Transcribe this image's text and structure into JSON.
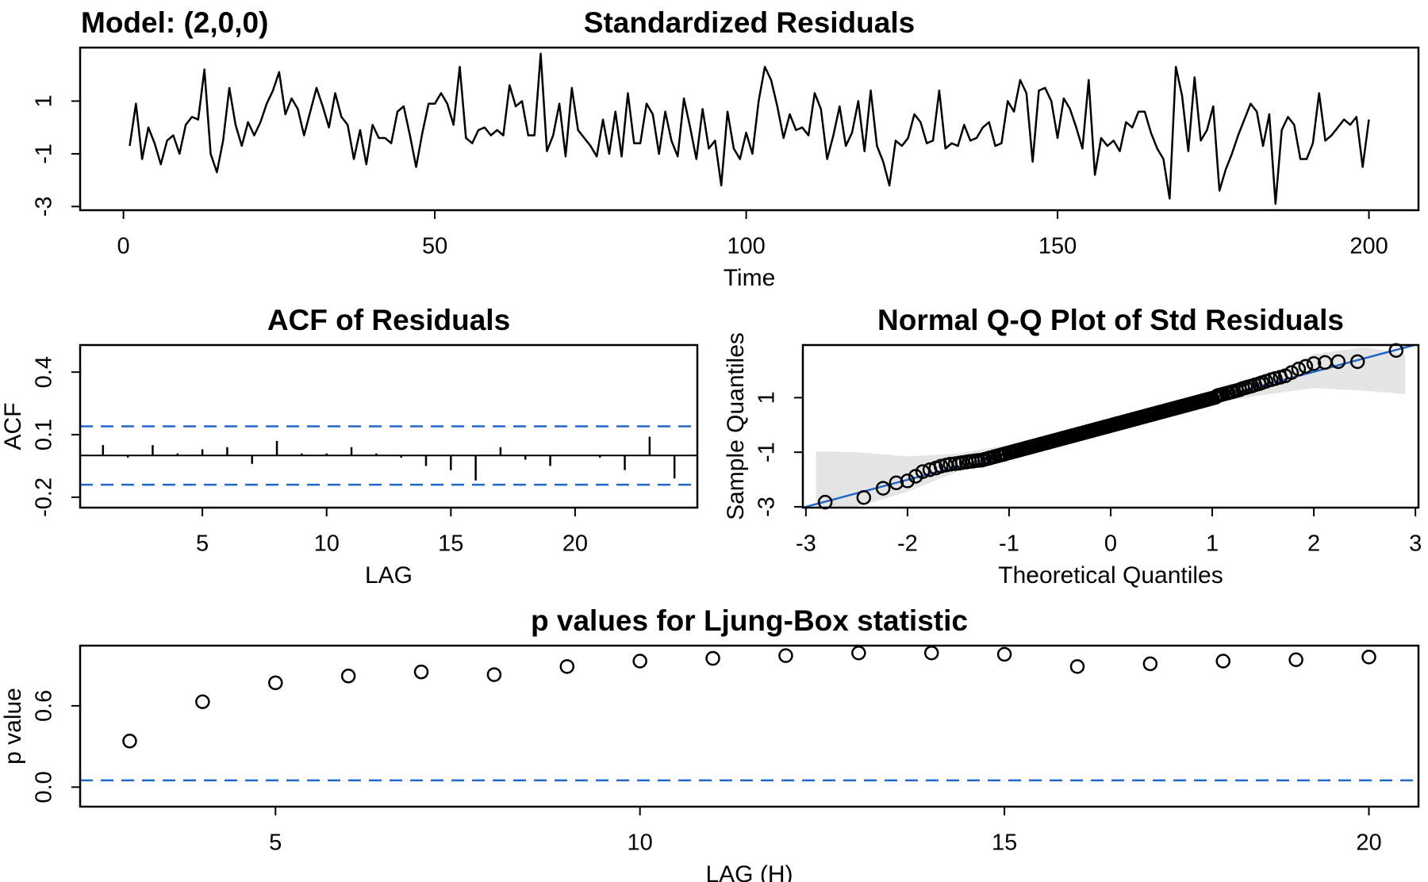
{
  "chart_data": [
    {
      "type": "line",
      "title": "Standardized Residuals",
      "annotation": "Model: (2,0,0)",
      "xlabel": "Time",
      "color": "#000000",
      "xlim": [
        -6.96,
        207.96
      ],
      "ylim": [
        -3.14,
        3.03
      ],
      "xticks": [
        0,
        50,
        100,
        150,
        200
      ],
      "yticks": [
        -3,
        -1,
        1
      ],
      "x": [
        1,
        2,
        3,
        4,
        5,
        6,
        7,
        8,
        9,
        10,
        11,
        12,
        13,
        14,
        15,
        16,
        17,
        18,
        19,
        20,
        21,
        22,
        23,
        24,
        25,
        26,
        27,
        28,
        29,
        30,
        31,
        32,
        33,
        34,
        35,
        36,
        37,
        38,
        39,
        40,
        41,
        42,
        43,
        44,
        45,
        46,
        47,
        48,
        49,
        50,
        51,
        52,
        53,
        54,
        55,
        56,
        57,
        58,
        59,
        60,
        61,
        62,
        63,
        64,
        65,
        66,
        67,
        68,
        69,
        70,
        71,
        72,
        73,
        74,
        75,
        76,
        77,
        78,
        79,
        80,
        81,
        82,
        83,
        84,
        85,
        86,
        87,
        88,
        89,
        90,
        91,
        92,
        93,
        94,
        95,
        96,
        97,
        98,
        99,
        100,
        101,
        102,
        103,
        104,
        105,
        106,
        107,
        108,
        109,
        110,
        111,
        112,
        113,
        114,
        115,
        116,
        117,
        118,
        119,
        120,
        121,
        122,
        123,
        124,
        125,
        126,
        127,
        128,
        129,
        130,
        131,
        132,
        133,
        134,
        135,
        136,
        137,
        138,
        139,
        140,
        141,
        142,
        143,
        144,
        145,
        146,
        147,
        148,
        149,
        150,
        151,
        152,
        153,
        154,
        155,
        156,
        157,
        158,
        159,
        160,
        161,
        162,
        163,
        164,
        165,
        166,
        167,
        168,
        169,
        170,
        171,
        172,
        173,
        174,
        175,
        176,
        177,
        178,
        179,
        180,
        181,
        182,
        183,
        184,
        185,
        186,
        187,
        188,
        189,
        190,
        191,
        192,
        193,
        194,
        195,
        196,
        197,
        198,
        199,
        200
      ],
      "values": [
        -0.7,
        0.9,
        -1.2,
        0,
        -0.6,
        -1.4,
        -0.5,
        -0.3,
        -1.0,
        0.1,
        0.4,
        0.3,
        2.2,
        -1.0,
        -1.7,
        -0.5,
        1.5,
        0.1,
        -0.7,
        0.2,
        -0.3,
        0.2,
        0.9,
        1.4,
        2.1,
        0.5,
        1.1,
        0.7,
        -0.3,
        0.6,
        1.5,
        0.8,
        0,
        1.3,
        0.4,
        0.1,
        -1.2,
        -0.1,
        -1.4,
        0.1,
        -0.4,
        -0.4,
        -0.6,
        0.6,
        0.8,
        -0.3,
        -1.5,
        -0.2,
        0.9,
        0.9,
        1.3,
        0.9,
        0.1,
        2.3,
        -0.4,
        -0.6,
        -0.1,
        0,
        -0.3,
        -0.1,
        -0.3,
        1.6,
        0.8,
        1.0,
        -0.3,
        -0.3,
        2.8,
        -0.9,
        -0.3,
        0.9,
        -1.1,
        1.5,
        -0.1,
        -0.4,
        -0.7,
        -1.1,
        0.3,
        -1.0,
        0.6,
        -1.1,
        1.3,
        -0.6,
        -0.6,
        0.9,
        0.5,
        -1.0,
        0.6,
        -0.5,
        -1.1,
        1.1,
        0,
        -1.2,
        0.7,
        -0.8,
        -0.5,
        -2.2,
        0.6,
        -0.8,
        -1.2,
        -0.2,
        -1.0,
        1.0,
        2.3,
        1.8,
        0.8,
        -0.4,
        0.5,
        -0.1,
        0,
        -0.3,
        1.3,
        0.7,
        -1.2,
        -0.3,
        0.8,
        -0.7,
        -0.2,
        1.0,
        -0.9,
        1.4,
        -0.7,
        -1.3,
        -2.2,
        -0.5,
        -0.7,
        -0.4,
        0.5,
        0.2,
        -0.6,
        -0.5,
        1.4,
        -0.8,
        -0.6,
        -0.7,
        0.1,
        -0.5,
        -0.4,
        0,
        0.2,
        -0.7,
        -0.6,
        1.0,
        0.6,
        1.8,
        1.3,
        -1.3,
        1.4,
        1.5,
        1.0,
        -0.4,
        1.1,
        0.7,
        0,
        -0.8,
        1.8,
        -1.8,
        -0.4,
        -0.7,
        -0.5,
        -0.9,
        0.2,
        0,
        0.6,
        0.6,
        -0.2,
        -0.8,
        -1.2,
        -2.7,
        2.3,
        1.2,
        -0.9,
        1.9,
        -0.5,
        -0.1,
        0.8,
        -2.4,
        -1.6,
        -1.0,
        -0.3,
        0.3,
        0.9,
        0.6,
        -0.7,
        0.5,
        -2.9,
        -0.1,
        0.4,
        0.1,
        -1.2,
        -1.2,
        -0.6,
        1.3,
        -0.5,
        -0.3,
        0,
        0.3,
        0.1,
        0.4,
        -1.5,
        0.3
      ]
    },
    {
      "type": "bar",
      "title": "ACF of Residuals",
      "xlabel": "LAG",
      "ylabel": "ACF",
      "color": "#000000",
      "xlim": [
        0.08,
        24.92
      ],
      "ylim": [
        -0.25,
        0.53
      ],
      "xticks": [
        5,
        10,
        15,
        20
      ],
      "yticks": [
        -0.2,
        0.1,
        0.4
      ],
      "hlines": [
        0.14,
        -0.14
      ],
      "hline_color": "#2166c9",
      "x": [
        1,
        2,
        3,
        4,
        5,
        6,
        7,
        8,
        9,
        10,
        11,
        12,
        13,
        14,
        15,
        16,
        17,
        18,
        19,
        20,
        21,
        22,
        23,
        24
      ],
      "values": [
        0.05,
        -0.01,
        0.05,
        0.01,
        0.03,
        0.04,
        -0.04,
        0.07,
        0.01,
        0.01,
        0.04,
        0.01,
        -0.01,
        -0.05,
        -0.07,
        -0.12,
        0.04,
        -0.02,
        -0.05,
        0,
        -0.01,
        -0.07,
        0.09,
        -0.11
      ]
    },
    {
      "type": "scatter",
      "title": "Normal Q-Q Plot of Std Residuals",
      "xlabel": "Theoretical Quantiles",
      "ylabel": "Sample Quantiles",
      "color": "#000000",
      "xlim": [
        -3.03,
        3.03
      ],
      "ylim": [
        -3.03,
        2.93
      ],
      "xticks": [
        -3,
        -2,
        -1,
        0,
        1,
        2,
        3
      ],
      "yticks": [
        -3,
        -1,
        1
      ],
      "line": {
        "intercept": -0.03,
        "slope": 0.99,
        "color": "#2166c9"
      },
      "envelope": {
        "color": "#e5e5e5",
        "x": [
          -2.9,
          -2.5,
          -2,
          -1.5,
          -1,
          -0.5,
          0,
          0.5,
          1,
          1.5,
          2,
          2.5,
          2.9
        ],
        "upper": [
          -0.97,
          -1.0,
          -1.15,
          -1.05,
          -0.72,
          -0.25,
          0.2,
          0.65,
          1.2,
          1.75,
          2.6,
          2.85,
          2.6
        ],
        "lower": [
          -3.4,
          -3.0,
          -2.45,
          -1.7,
          -1.25,
          -0.75,
          -0.25,
          0.35,
          0.8,
          1.1,
          1.35,
          1.25,
          1.14
        ]
      },
      "x": [
        -2.81,
        -2.43,
        -2.24,
        -2.11,
        -2.0,
        -1.92,
        -1.85,
        -1.78,
        -1.72,
        -1.67,
        -1.62,
        -1.58,
        -1.53,
        -1.49,
        -1.46,
        -1.42,
        -1.39,
        -1.36,
        -1.33,
        -1.3,
        -1.27,
        -1.24,
        -1.21,
        -1.19,
        -1.16,
        -1.14,
        -1.11,
        -1.09,
        -1.07,
        -1.05,
        -1.03,
        -1.0,
        -0.98,
        -0.96,
        -0.94,
        -0.92,
        -0.91,
        -0.89,
        -0.87,
        -0.85,
        -0.83,
        -0.82,
        -0.8,
        -0.78,
        -0.76,
        -0.75,
        -0.73,
        -0.71,
        -0.7,
        -0.68,
        -0.67,
        -0.65,
        -0.64,
        -0.62,
        -0.61,
        -0.59,
        -0.58,
        -0.56,
        -0.55,
        -0.53,
        -0.52,
        -0.5,
        -0.49,
        -0.47,
        -0.46,
        -0.45,
        -0.43,
        -0.42,
        -0.41,
        -0.39,
        -0.38,
        -0.37,
        -0.35,
        -0.34,
        -0.33,
        -0.31,
        -0.3,
        -0.29,
        -0.27,
        -0.26,
        -0.25,
        -0.23,
        -0.22,
        -0.21,
        -0.2,
        -0.18,
        -0.17,
        -0.16,
        -0.14,
        -0.13,
        -0.12,
        -0.11,
        -0.09,
        -0.08,
        -0.07,
        -0.06,
        -0.04,
        -0.03,
        -0.02,
        -0.01,
        0.01,
        0.02,
        0.03,
        0.04,
        0.06,
        0.07,
        0.08,
        0.09,
        0.11,
        0.12,
        0.13,
        0.14,
        0.16,
        0.17,
        0.18,
        0.2,
        0.21,
        0.22,
        0.23,
        0.25,
        0.26,
        0.27,
        0.29,
        0.3,
        0.31,
        0.33,
        0.34,
        0.35,
        0.37,
        0.38,
        0.39,
        0.41,
        0.42,
        0.43,
        0.45,
        0.46,
        0.47,
        0.49,
        0.5,
        0.52,
        0.53,
        0.55,
        0.56,
        0.58,
        0.59,
        0.61,
        0.62,
        0.64,
        0.65,
        0.67,
        0.68,
        0.7,
        0.71,
        0.73,
        0.75,
        0.76,
        0.78,
        0.8,
        0.82,
        0.83,
        0.85,
        0.87,
        0.89,
        0.91,
        0.92,
        0.94,
        0.96,
        0.98,
        1.0,
        1.03,
        1.05,
        1.07,
        1.09,
        1.11,
        1.14,
        1.16,
        1.19,
        1.21,
        1.24,
        1.27,
        1.3,
        1.33,
        1.36,
        1.39,
        1.42,
        1.46,
        1.49,
        1.53,
        1.58,
        1.62,
        1.67,
        1.72,
        1.78,
        1.85,
        1.92,
        2.0,
        2.11,
        2.24,
        2.43,
        2.81
      ],
      "values": [
        -2.83,
        -2.66,
        -2.32,
        -2.12,
        -2.05,
        -1.88,
        -1.71,
        -1.64,
        -1.58,
        -1.51,
        -1.47,
        -1.44,
        -1.42,
        -1.4,
        -1.38,
        -1.36,
        -1.34,
        -1.33,
        -1.31,
        -1.3,
        -1.29,
        -1.26,
        -1.23,
        -1.21,
        -1.18,
        -1.16,
        -1.13,
        -1.11,
        -1.09,
        -1.07,
        -1.05,
        -1.02,
        -1.0,
        -0.98,
        -0.96,
        -0.94,
        -0.93,
        -0.91,
        -0.89,
        -0.87,
        -0.85,
        -0.84,
        -0.82,
        -0.8,
        -0.78,
        -0.77,
        -0.75,
        -0.73,
        -0.72,
        -0.7,
        -0.69,
        -0.67,
        -0.66,
        -0.64,
        -0.63,
        -0.61,
        -0.6,
        -0.58,
        -0.57,
        -0.55,
        -0.54,
        -0.52,
        -0.51,
        -0.49,
        -0.48,
        -0.47,
        -0.45,
        -0.44,
        -0.43,
        -0.41,
        -0.4,
        -0.39,
        -0.37,
        -0.36,
        -0.35,
        -0.33,
        -0.32,
        -0.31,
        -0.29,
        -0.28,
        -0.27,
        -0.25,
        -0.24,
        -0.23,
        -0.22,
        -0.2,
        -0.19,
        -0.18,
        -0.16,
        -0.15,
        -0.14,
        -0.13,
        -0.11,
        -0.1,
        -0.09,
        -0.08,
        -0.06,
        -0.05,
        -0.04,
        -0.03,
        -0.01,
        0,
        0.01,
        0.02,
        0.04,
        0.05,
        0.06,
        0.07,
        0.09,
        0.1,
        0.11,
        0.12,
        0.14,
        0.15,
        0.16,
        0.18,
        0.19,
        0.2,
        0.21,
        0.23,
        0.24,
        0.25,
        0.27,
        0.28,
        0.29,
        0.31,
        0.32,
        0.33,
        0.35,
        0.36,
        0.37,
        0.39,
        0.4,
        0.41,
        0.43,
        0.44,
        0.45,
        0.47,
        0.48,
        0.5,
        0.51,
        0.53,
        0.54,
        0.56,
        0.57,
        0.59,
        0.6,
        0.62,
        0.63,
        0.65,
        0.66,
        0.68,
        0.69,
        0.71,
        0.73,
        0.74,
        0.76,
        0.78,
        0.8,
        0.81,
        0.83,
        0.85,
        0.87,
        0.89,
        0.9,
        0.92,
        0.94,
        0.96,
        0.98,
        1.01,
        1.07,
        1.09,
        1.11,
        1.13,
        1.16,
        1.18,
        1.21,
        1.23,
        1.26,
        1.29,
        1.34,
        1.37,
        1.4,
        1.43,
        1.47,
        1.51,
        1.55,
        1.6,
        1.66,
        1.7,
        1.75,
        1.8,
        1.92,
        2.05,
        2.15,
        2.25,
        2.29,
        2.32,
        2.32,
        2.73
      ]
    },
    {
      "type": "scatter",
      "title": "p values for Ljung-Box statistic",
      "xlabel": "LAG (H)",
      "ylabel": "p value",
      "color": "#000000",
      "xlim": [
        2.32,
        20.68
      ],
      "ylim": [
        -0.144,
        1.044
      ],
      "xticks": [
        5,
        10,
        15,
        20
      ],
      "yticks": [
        {
          "value": 0,
          "label": "0.0"
        },
        0.6
      ],
      "hlines": [
        0.05
      ],
      "hline_color": "#2166c9",
      "x": [
        3,
        4,
        5,
        6,
        7,
        8,
        9,
        10,
        11,
        12,
        13,
        14,
        15,
        16,
        17,
        18,
        19,
        20
      ],
      "values": [
        0.34,
        0.63,
        0.77,
        0.82,
        0.85,
        0.83,
        0.89,
        0.93,
        0.95,
        0.97,
        0.99,
        0.99,
        0.98,
        0.89,
        0.91,
        0.93,
        0.94,
        0.96
      ]
    }
  ]
}
